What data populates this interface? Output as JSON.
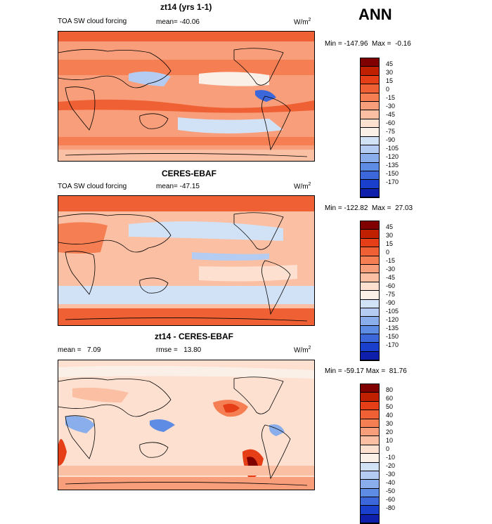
{
  "season": "ANN",
  "colors": {
    "forcing": [
      "#800000",
      "#c01f00",
      "#e63f17",
      "#ef6134",
      "#f57f53",
      "#f89e7a",
      "#fbbfa3",
      "#fde0cf",
      "#fbf0e8",
      "#d2e2f6",
      "#b4ccf2",
      "#8aaeeb",
      "#5e8be3",
      "#3b67da",
      "#1b3fcd",
      "#0d1fab",
      "#000080"
    ],
    "diff": [
      "#800000",
      "#c01f00",
      "#e63f17",
      "#ef6134",
      "#f57f53",
      "#f89e7a",
      "#fbbfa3",
      "#fde0cf",
      "#fbf0e8",
      "#d2e2f6",
      "#b4ccf2",
      "#8aaeeb",
      "#5e8be3",
      "#3b67da",
      "#1b3fcd",
      "#0d1fab",
      "#000080"
    ]
  },
  "panels": [
    {
      "title": "zt14 (yrs 1-1)",
      "left_label": "TOA SW cloud forcing",
      "mean_label": "mean=",
      "mean_value": "-40.06",
      "units": "W/m",
      "units_sup": "2",
      "min_label": "Min =",
      "min_value": "-147.96",
      "max_label": "Max =",
      "max_value": "-0.16",
      "levels": [
        "45",
        "30",
        "15",
        "0",
        "-15",
        "-30",
        "-45",
        "-60",
        "-75",
        "-90",
        "-105",
        "-120",
        "-135",
        "-150",
        "-170"
      ]
    },
    {
      "title": "CERES-EBAF",
      "left_label": "TOA SW cloud forcing",
      "mean_label": "mean=",
      "mean_value": "-47.15",
      "units": "W/m",
      "units_sup": "2",
      "min_label": "Min =",
      "min_value": "-122.82",
      "max_label": "Max =",
      "max_value": "27.03",
      "levels": [
        "45",
        "30",
        "15",
        "0",
        "-15",
        "-30",
        "-45",
        "-60",
        "-75",
        "-90",
        "-105",
        "-120",
        "-135",
        "-150",
        "-170"
      ]
    },
    {
      "title": "zt14 - CERES-EBAF",
      "left_label": "mean =",
      "left_value": "7.09",
      "mean_label": "rmse =",
      "mean_value": "13.80",
      "units": "W/m",
      "units_sup": "2",
      "min_label": "Min =",
      "min_value": "-59.17",
      "max_label": "Max =",
      "max_value": "81.76",
      "levels": [
        "80",
        "60",
        "50",
        "40",
        "30",
        "20",
        "10",
        "0",
        "-10",
        "-20",
        "-30",
        "-40",
        "-50",
        "-60",
        "-80"
      ]
    }
  ]
}
